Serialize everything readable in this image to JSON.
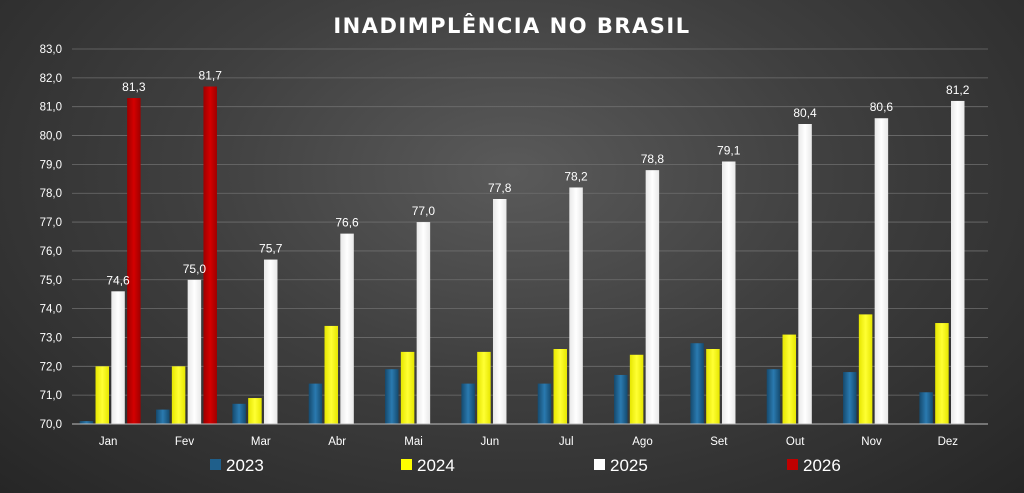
{
  "chart_data": {
    "type": "bar",
    "title": "INADIMPLÊNCIA NO BRASIL",
    "categories": [
      "Jan",
      "Fev",
      "Mar",
      "Abr",
      "Mai",
      "Jun",
      "Jul",
      "Ago",
      "Set",
      "Out",
      "Nov",
      "Dez"
    ],
    "series": [
      {
        "name": "2023",
        "color": "#1f5f8b",
        "values": [
          70.1,
          70.5,
          70.7,
          71.4,
          71.9,
          71.4,
          71.4,
          71.7,
          72.8,
          71.9,
          71.8,
          71.1
        ],
        "show_labels": false
      },
      {
        "name": "2024",
        "color": "#ffff00",
        "values": [
          72.0,
          72.0,
          70.9,
          73.4,
          72.5,
          72.5,
          72.6,
          72.4,
          72.6,
          73.1,
          73.8,
          73.5
        ],
        "show_labels": false
      },
      {
        "name": "2025",
        "color": "#ffffff",
        "values": [
          74.6,
          75.0,
          75.7,
          76.6,
          77.0,
          77.8,
          78.2,
          78.8,
          79.1,
          80.4,
          80.6,
          81.2
        ],
        "show_labels": true
      },
      {
        "name": "2026",
        "color": "#c00000",
        "values": [
          81.3,
          81.7,
          null,
          null,
          null,
          null,
          null,
          null,
          null,
          null,
          null,
          null
        ],
        "show_labels": true
      }
    ],
    "data_labels": {
      "2025": [
        "74,6",
        "75,0",
        "75,7",
        "76,6",
        "77,0",
        "77,8",
        "78,2",
        "78,8",
        "79,1",
        "80,4",
        "80,6",
        "81,2"
      ],
      "2026": [
        "81,3",
        "81,7"
      ]
    },
    "ylim": [
      70,
      83
    ],
    "yticks": [
      "70,0",
      "71,0",
      "72,0",
      "73,0",
      "74,0",
      "75,0",
      "76,0",
      "77,0",
      "78,0",
      "79,0",
      "80,0",
      "81,0",
      "82,0",
      "83,0"
    ],
    "grid": true,
    "legend_position": "bottom",
    "xlabel": "",
    "ylabel": ""
  }
}
